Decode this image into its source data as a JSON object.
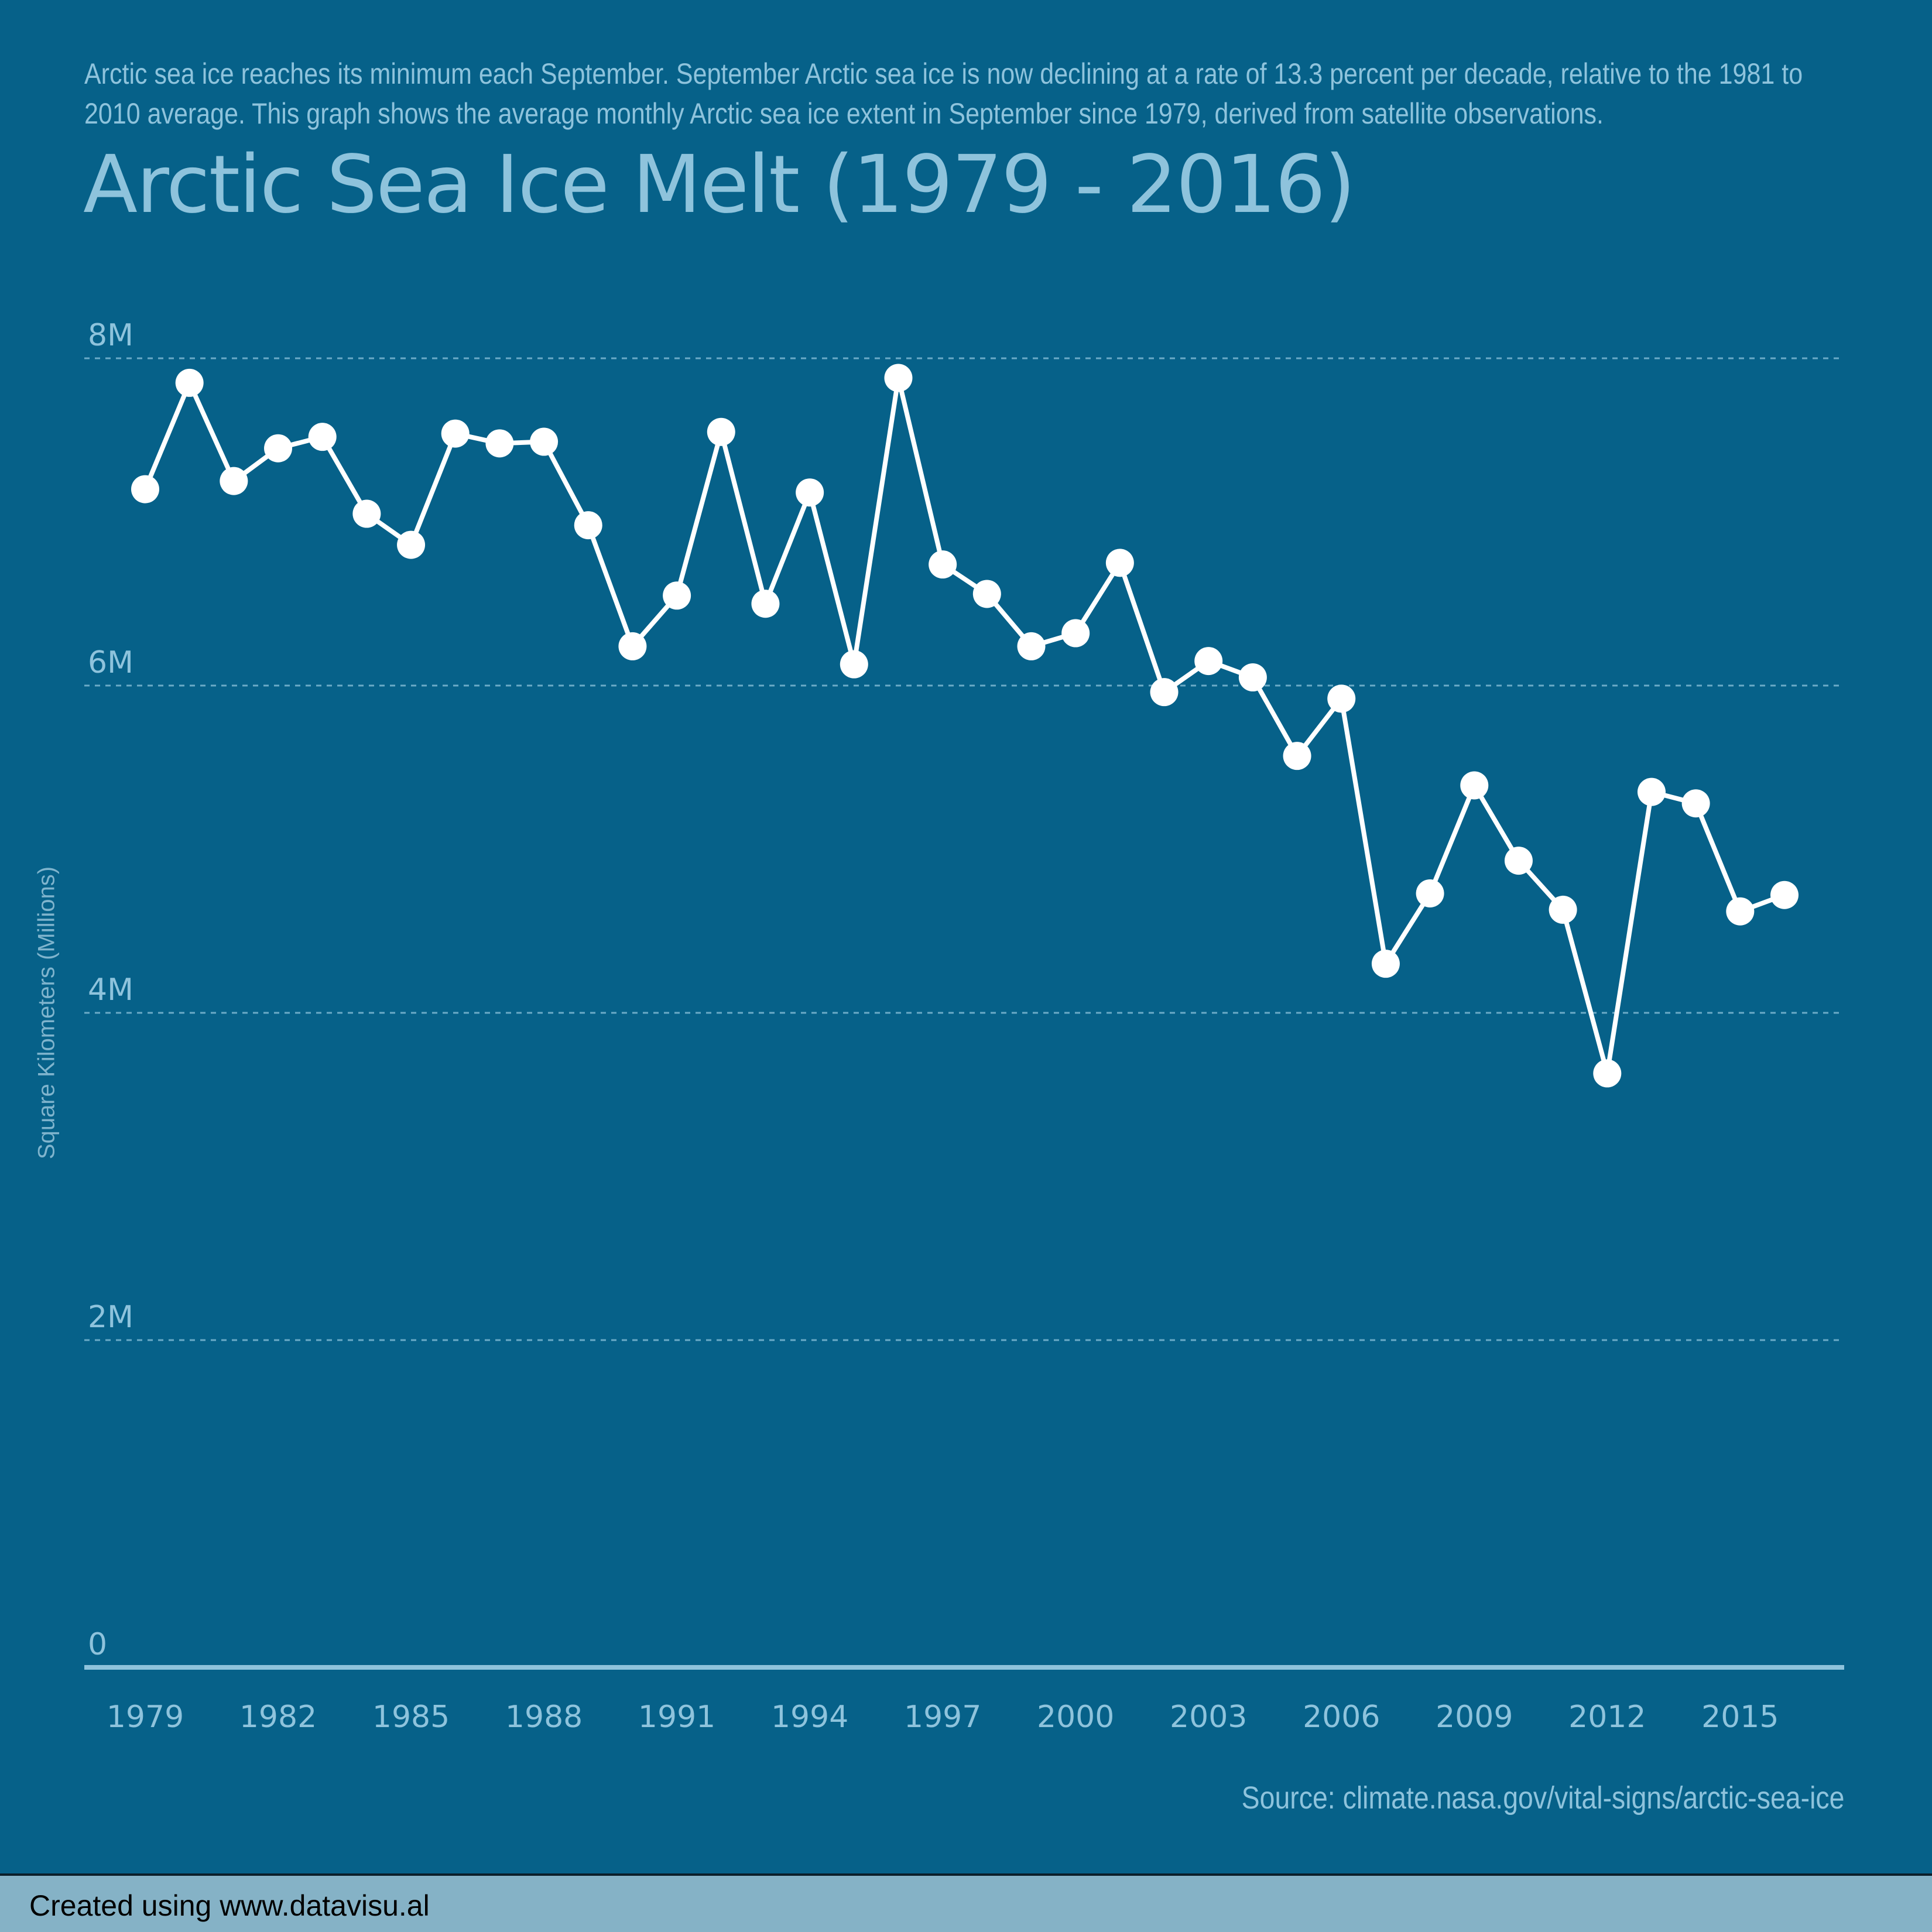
{
  "description": "Arctic sea ice reaches its minimum each September. September Arctic sea ice is now declining at a rate of 13.3 percent per decade, relative to the 1981 to 2010 average. This graph shows the average monthly Arctic sea ice extent in September since 1979, derived from satellite observations.",
  "footer": {
    "text": "Created using www.datavisu.al"
  },
  "colors": {
    "background": "#066189",
    "text": "#8ec3dc",
    "line": "#ffffff",
    "grid": "#8ec3dc",
    "footer": "#85b2c6"
  },
  "chart_data": {
    "type": "line",
    "title": "Arctic Sea Ice Melt (1979 - 2016)",
    "ylabel": "Square Kilometers (Millions)",
    "source": "Source: climate.nasa.gov/vital-signs/arctic-sea-ice",
    "ylim": [
      0,
      8000000
    ],
    "xlim": [
      1979,
      2016
    ],
    "grid": true,
    "y_ticks": [
      0,
      2000000,
      4000000,
      6000000,
      8000000
    ],
    "y_tick_labels": [
      "0",
      "2M",
      "4M",
      "6M",
      "8M"
    ],
    "x_ticks": [
      1979,
      1982,
      1985,
      1988,
      1991,
      1994,
      1997,
      2000,
      2003,
      2006,
      2009,
      2012,
      2015
    ],
    "x_tick_labels": [
      "1979",
      "1982",
      "1985",
      "1988",
      "1991",
      "1994",
      "1997",
      "2000",
      "2003",
      "2006",
      "2009",
      "2012",
      "2015"
    ],
    "series": [
      {
        "x": [
          1979,
          1980,
          1981,
          1982,
          1983,
          1984,
          1985,
          1986,
          1987,
          1988,
          1989,
          1990,
          1991,
          1992,
          1993,
          1994,
          1995,
          1996,
          1997,
          1998,
          1999,
          2000,
          2001,
          2002,
          2003,
          2004,
          2005,
          2006,
          2007,
          2008,
          2009,
          2010,
          2011,
          2012,
          2013,
          2014,
          2015,
          2016
        ],
        "values": [
          7.2,
          7.85,
          7.25,
          7.45,
          7.52,
          7.05,
          6.86,
          7.54,
          7.48,
          7.49,
          6.98,
          6.24,
          6.55,
          7.55,
          6.5,
          7.18,
          6.13,
          7.88,
          6.74,
          6.56,
          6.24,
          6.32,
          6.75,
          5.96,
          6.15,
          6.05,
          5.57,
          5.92,
          4.3,
          4.73,
          5.39,
          4.93,
          4.63,
          3.63,
          5.35,
          5.28,
          4.62,
          4.72
        ]
      }
    ],
    "value_unit": "millions"
  }
}
